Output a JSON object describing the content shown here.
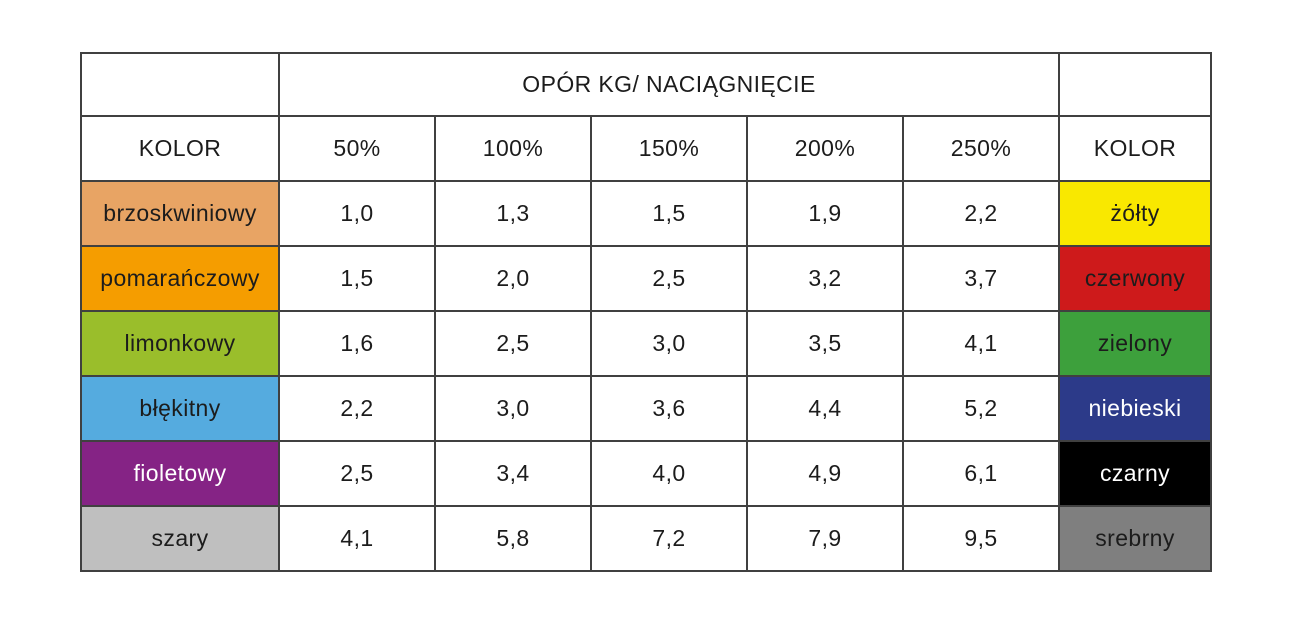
{
  "table": {
    "span_header": "OPÓR KG/ NACIĄGNIĘCIE",
    "col_headers": [
      "KOLOR",
      "50%",
      "100%",
      "150%",
      "200%",
      "250%",
      "KOLOR"
    ],
    "border_color": "#404040",
    "rows": [
      {
        "left_color_name": "brzoskwiniowy",
        "left_bg": "#E8A464",
        "left_text": "#1c1c1c",
        "values": [
          "1,0",
          "1,3",
          "1,5",
          "1,9",
          "2,2"
        ],
        "right_color_name": "żółty",
        "right_bg": "#F9E800",
        "right_text": "#1c1c1c"
      },
      {
        "left_color_name": "pomarańczowy",
        "left_bg": "#F59D00",
        "left_text": "#1c1c1c",
        "values": [
          "1,5",
          "2,0",
          "2,5",
          "3,2",
          "3,7"
        ],
        "right_color_name": "czerwony",
        "right_bg": "#CE1A1B",
        "right_text": "#1c1c1c"
      },
      {
        "left_color_name": "limonkowy",
        "left_bg": "#9ABE2B",
        "left_text": "#1c1c1c",
        "values": [
          "1,6",
          "2,5",
          "3,0",
          "3,5",
          "4,1"
        ],
        "right_color_name": "zielony",
        "right_bg": "#3DA03C",
        "right_text": "#1c1c1c"
      },
      {
        "left_color_name": "błękitny",
        "left_bg": "#55ABDF",
        "left_text": "#1c1c1c",
        "values": [
          "2,2",
          "3,0",
          "3,6",
          "4,4",
          "5,2"
        ],
        "right_color_name": "niebieski",
        "right_bg": "#2C3A89",
        "right_text": "#ffffff"
      },
      {
        "left_color_name": "fioletowy",
        "left_bg": "#852385",
        "left_text": "#ffffff",
        "values": [
          "2,5",
          "3,4",
          "4,0",
          "4,9",
          "6,1"
        ],
        "right_color_name": "czarny",
        "right_bg": "#000000",
        "right_text": "#ffffff"
      },
      {
        "left_color_name": "szary",
        "left_bg": "#BFBFBF",
        "left_text": "#1c1c1c",
        "values": [
          "4,1",
          "5,8",
          "7,2",
          "7,9",
          "9,5"
        ],
        "right_color_name": "srebrny",
        "right_bg": "#7F7F7F",
        "right_text": "#1c1c1c"
      }
    ]
  },
  "chart_data": {
    "type": "table",
    "title": "OPÓR KG/ NACIĄGNIĘCIE",
    "columns": [
      "KOLOR",
      "50%",
      "100%",
      "150%",
      "200%",
      "250%",
      "KOLOR"
    ],
    "rows": [
      [
        "brzoskwiniowy",
        1.0,
        1.3,
        1.5,
        1.9,
        2.2,
        "żółty"
      ],
      [
        "pomarańczowy",
        1.5,
        2.0,
        2.5,
        3.2,
        3.7,
        "czerwony"
      ],
      [
        "limonkowy",
        1.6,
        2.5,
        3.0,
        3.5,
        4.1,
        "zielony"
      ],
      [
        "błękitny",
        2.2,
        3.0,
        3.6,
        4.4,
        5.2,
        "niebieski"
      ],
      [
        "fioletowy",
        2.5,
        3.4,
        4.0,
        4.9,
        6.1,
        "czarny"
      ],
      [
        "szary",
        4.1,
        5.8,
        7.2,
        7.9,
        9.5,
        "srebrny"
      ]
    ],
    "notes": "Decimal comma formatting; left and right KOLOR columns are color swatches naming band colors"
  }
}
